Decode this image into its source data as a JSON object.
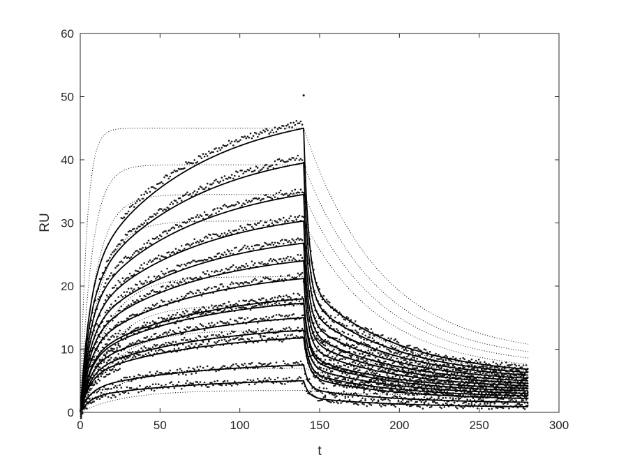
{
  "chart_data": {
    "type": "line",
    "title": "",
    "xlabel": "t",
    "ylabel": "RU",
    "xlim": [
      0,
      300
    ],
    "ylim": [
      0,
      60
    ],
    "xticks": [
      "0",
      "50",
      "100",
      "150",
      "200",
      "250",
      "300"
    ],
    "yticks": [
      "0",
      "10",
      "20",
      "30",
      "40",
      "50",
      "60"
    ],
    "grid": false,
    "legend": "none",
    "association_end_t": 140,
    "end_t": 281,
    "solid_fit_series": [
      {
        "peak": 45.0,
        "end": 6.8
      },
      {
        "peak": 39.5,
        "end": 6.3
      },
      {
        "peak": 34.5,
        "end": 5.9
      },
      {
        "peak": 30.3,
        "end": 5.4
      },
      {
        "peak": 26.8,
        "end": 5.0
      },
      {
        "peak": 24.0,
        "end": 4.6
      },
      {
        "peak": 21.2,
        "end": 4.2
      },
      {
        "peak": 18.0,
        "end": 3.8
      },
      {
        "peak": 17.3,
        "end": 3.4
      },
      {
        "peak": 15.0,
        "end": 3.0
      },
      {
        "peak": 13.0,
        "end": 2.6
      },
      {
        "peak": 11.8,
        "end": 2.2
      },
      {
        "peak": 7.5,
        "end": 1.6
      },
      {
        "peak": 5.0,
        "end": 0.9
      }
    ],
    "dotted_model_series": [
      {
        "plateau": 45.0,
        "end": 10.8
      },
      {
        "plateau": 39.2,
        "end": 9.6
      },
      {
        "plateau": 34.5,
        "end": 8.6
      },
      {
        "plateau": 30.3,
        "end": 7.6
      },
      {
        "plateau": 21.5,
        "end": 6.6
      },
      {
        "plateau": 17.0,
        "end": 5.6
      },
      {
        "plateau": 13.0,
        "end": 4.8
      },
      {
        "plateau": 7.0,
        "end": 3.6
      },
      {
        "plateau": 3.5,
        "end": 2.6
      }
    ],
    "outlier_point": {
      "x": 140,
      "y": 50.2
    },
    "colors": {
      "fit_line": "#000000",
      "model_line": "#000000",
      "data_points": "#1a1a1a",
      "axes": "#262626"
    }
  }
}
